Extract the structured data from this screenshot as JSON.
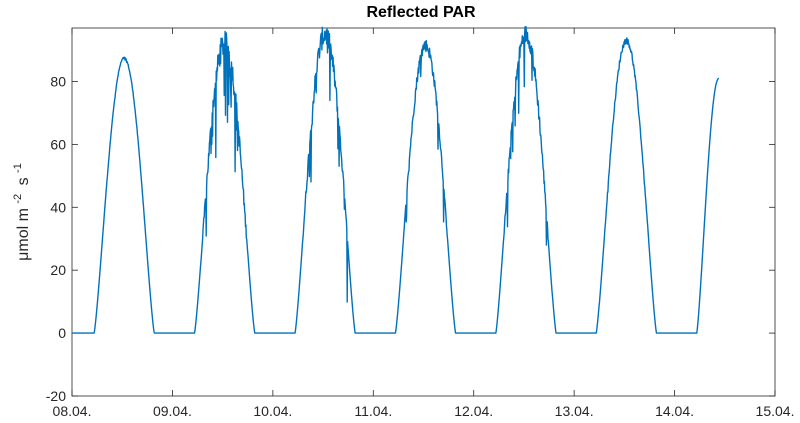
{
  "chart_data": {
    "type": "line",
    "title": "Reflected PAR",
    "ylabel": {
      "prefix": "μmol m",
      "exp1": "-2",
      "mid": "s",
      "exp2": "-1"
    },
    "xlabel": "",
    "xlim": [
      0,
      7
    ],
    "ylim": [
      -20,
      97
    ],
    "x_tick_values": [
      0,
      1,
      2,
      3,
      4,
      5,
      6,
      7
    ],
    "x_tick_labels": [
      "08.04.",
      "09.04.",
      "10.04.",
      "11.04.",
      "12.04.",
      "13.04.",
      "14.04.",
      "15.04."
    ],
    "y_ticks": [
      -20,
      0,
      20,
      40,
      60,
      80
    ],
    "series": [
      {
        "name": "Reflected PAR",
        "color": "#0072BD",
        "days": [
          {
            "start": 0.22,
            "end": 0.82,
            "peak": 87.5,
            "noise": 0.3
          },
          {
            "start": 0.22,
            "end": 0.82,
            "peak": 92,
            "noise": 4
          },
          {
            "start": 0.22,
            "end": 0.82,
            "peak": 95,
            "noise": 3.5
          },
          {
            "start": 0.22,
            "end": 0.82,
            "peak": 91.5,
            "noise": 2
          },
          {
            "start": 0.22,
            "end": 0.82,
            "peak": 95,
            "noise": 3
          },
          {
            "start": 0.22,
            "end": 0.82,
            "peak": 93,
            "noise": 1
          }
        ],
        "last_day": {
          "start": 0.22,
          "end_x": 6.44,
          "end_y": 81
        }
      }
    ]
  }
}
